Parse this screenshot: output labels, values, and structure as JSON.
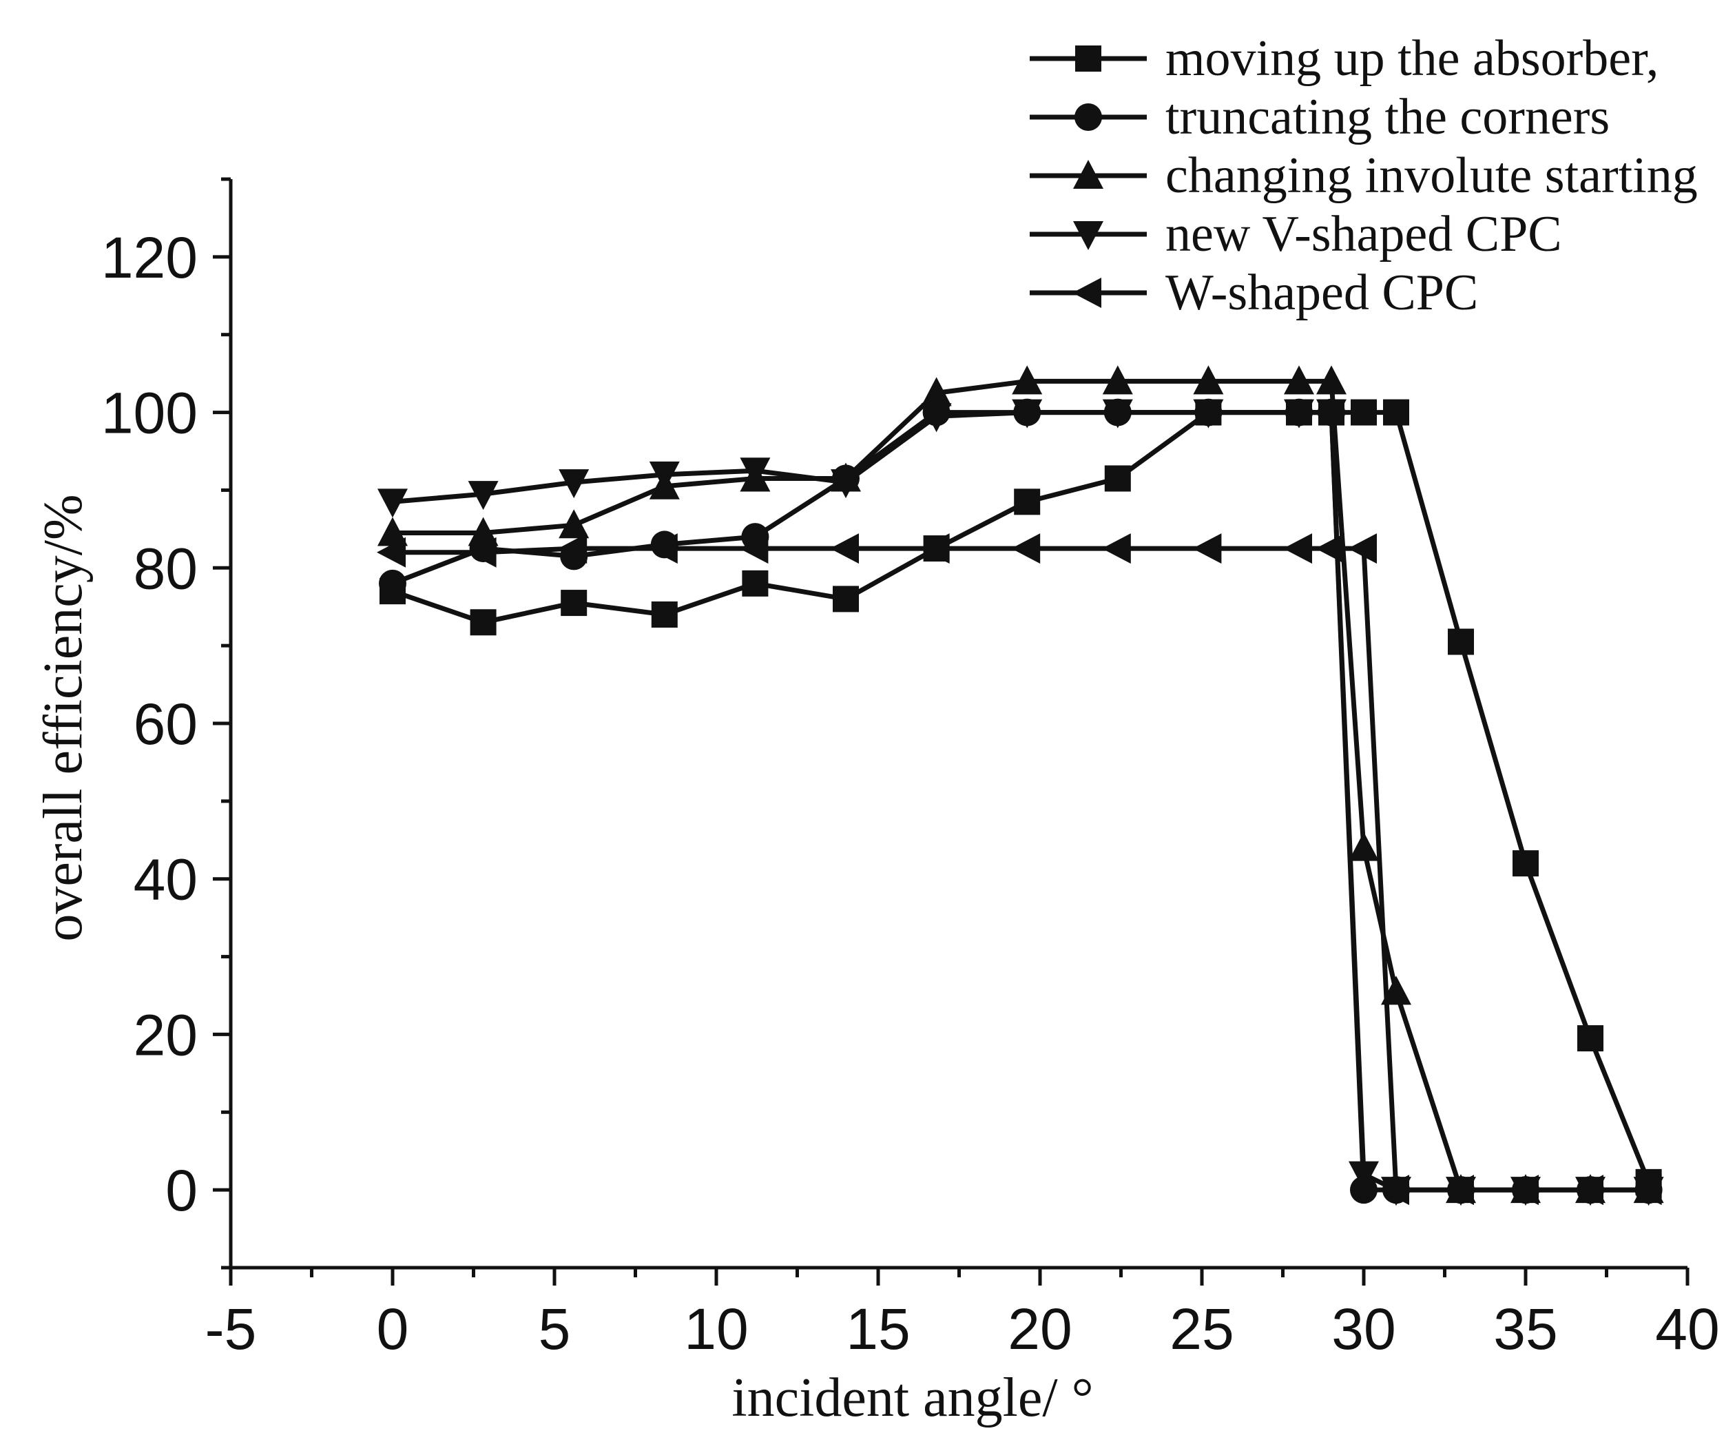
{
  "chart_data": {
    "type": "line",
    "title": "",
    "xlabel": "incident angle/ °",
    "ylabel": "overall efficiency/%",
    "xlim": [
      -5,
      40
    ],
    "ylim": [
      -10,
      130
    ],
    "xticks": [
      -5,
      0,
      5,
      10,
      15,
      20,
      25,
      30,
      35,
      40
    ],
    "yticks": [
      0,
      20,
      40,
      60,
      80,
      100,
      120
    ],
    "grid": false,
    "legend_position": "top-right",
    "series": [
      {
        "name": "moving up the absorber,",
        "marker": "square",
        "x": [
          0,
          2.8,
          5.6,
          8.4,
          11.2,
          14,
          16.8,
          19.6,
          22.4,
          25.2,
          28,
          29,
          30,
          31,
          33,
          35,
          37,
          38.8
        ],
        "y": [
          77,
          73,
          75.5,
          74,
          78,
          76,
          82.5,
          88.5,
          91.5,
          100,
          100,
          100,
          100,
          100,
          70.5,
          42,
          19.5,
          1
        ]
      },
      {
        "name": "truncating the corners",
        "marker": "circle",
        "x": [
          0,
          2.8,
          5.6,
          8.4,
          11.2,
          14,
          16.8,
          19.6,
          22.4,
          25.2,
          28,
          29,
          30,
          31,
          33,
          35,
          37,
          38.8
        ],
        "y": [
          78,
          82.5,
          81.5,
          83,
          84,
          91.5,
          100,
          100,
          100,
          100,
          100,
          100,
          0,
          0,
          0,
          0,
          0,
          0
        ]
      },
      {
        "name": "changing involute starting",
        "marker": "triangle-up",
        "x": [
          0,
          2.8,
          5.6,
          8.4,
          11.2,
          14,
          16.8,
          19.6,
          22.4,
          25.2,
          28,
          29,
          30,
          31,
          33,
          35,
          37,
          38.8
        ],
        "y": [
          84.5,
          84.5,
          85.5,
          90.5,
          91.5,
          91.5,
          102.5,
          104,
          104,
          104,
          104,
          104,
          44,
          25.5,
          0,
          0,
          0,
          0
        ]
      },
      {
        "name": "new V-shaped CPC",
        "marker": "triangle-down",
        "x": [
          0,
          2.8,
          5.6,
          8.4,
          11.2,
          14,
          16.8,
          19.6,
          22.4,
          25.2,
          28,
          29,
          30,
          31,
          33,
          35,
          37,
          38.8
        ],
        "y": [
          88.5,
          89.5,
          91,
          92,
          92.5,
          91,
          99.5,
          100,
          100,
          100,
          100,
          100,
          2,
          0,
          0,
          0,
          0,
          0
        ]
      },
      {
        "name": "W-shaped CPC",
        "marker": "triangle-left",
        "x": [
          0,
          2.8,
          5.6,
          8.4,
          11.2,
          14,
          16.8,
          19.6,
          22.4,
          25.2,
          28,
          29,
          30,
          31,
          33,
          35,
          37,
          38.8
        ],
        "y": [
          82,
          82,
          82.5,
          82.5,
          82.5,
          82.5,
          82.5,
          82.5,
          82.5,
          82.5,
          82.5,
          82.5,
          82.5,
          0,
          0,
          0,
          0,
          0
        ]
      }
    ]
  }
}
